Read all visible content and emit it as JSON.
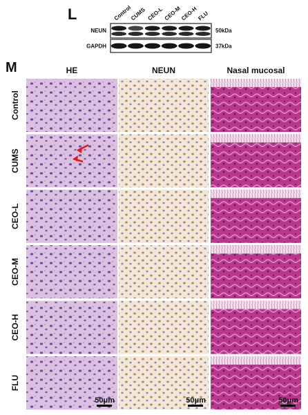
{
  "panel_l": {
    "label": "L",
    "lanes": [
      "Control",
      "CUMS",
      "CEO-L",
      "CEO-M",
      "CEO-H",
      "FLU"
    ],
    "rows": [
      {
        "name": "NEUN",
        "size": "50kDa"
      },
      {
        "name": "GAPDH",
        "size": "37kDa"
      }
    ]
  },
  "panel_m": {
    "label": "M",
    "columns": [
      "HE",
      "NEUN",
      "Nasal mucosal"
    ],
    "rows": [
      "Control",
      "CUMS",
      "CEO-L",
      "CEO-M",
      "CEO-H",
      "FLU"
    ],
    "scale_bar": "50μm"
  }
}
